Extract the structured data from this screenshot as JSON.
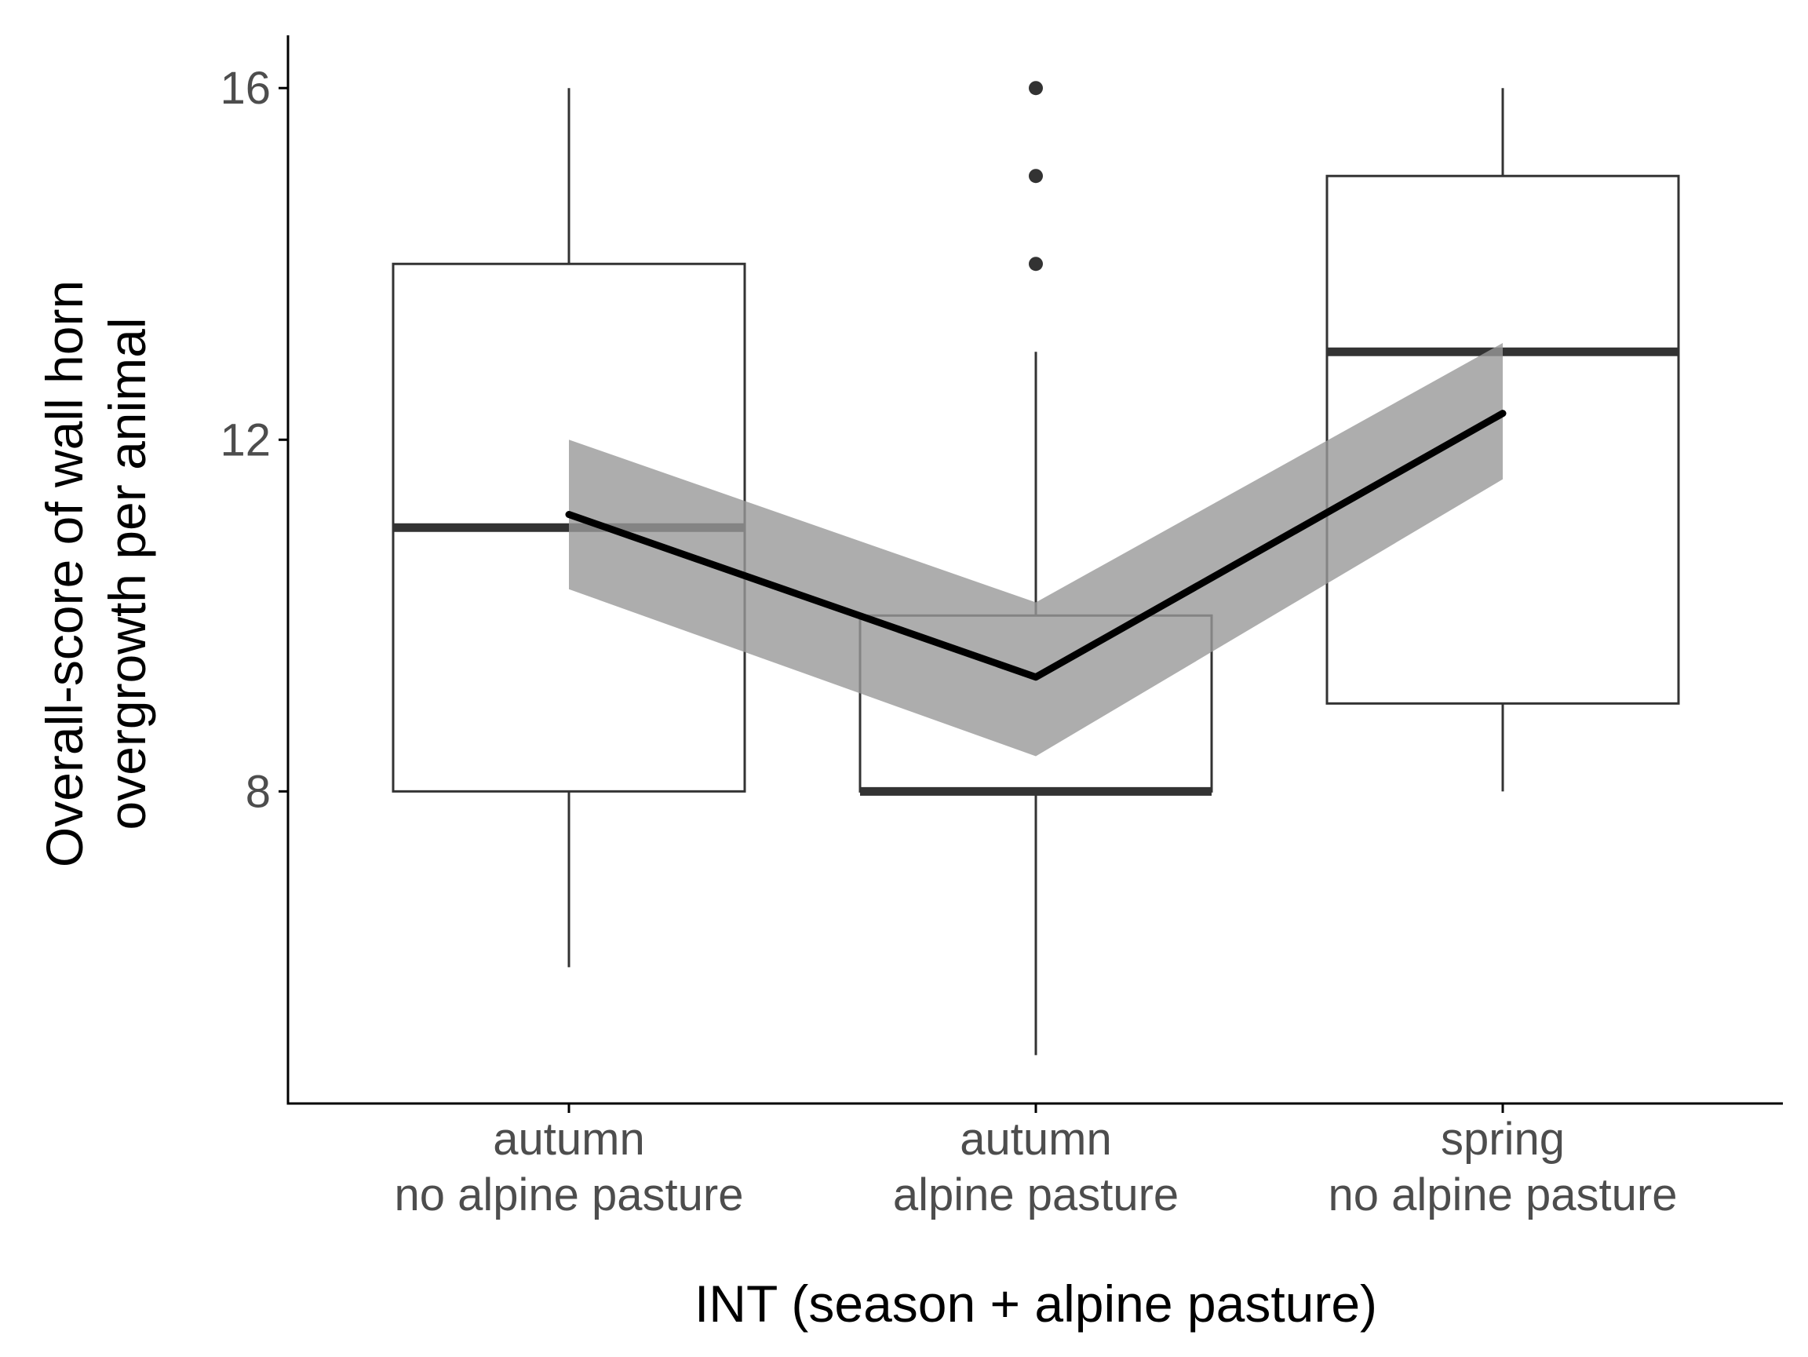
{
  "chart_data": {
    "type": "boxplot",
    "xlabel": "INT (season + alpine pasture)",
    "ylabel_lines": [
      "Overall-score of wall horn",
      "overgrowth per animal"
    ],
    "categories": [
      [
        "autumn",
        "no alpine pasture"
      ],
      [
        "autumn",
        "alpine pasture"
      ],
      [
        "spring",
        "no alpine pasture"
      ]
    ],
    "y_ticks": [
      8,
      12,
      16
    ],
    "ylim": [
      4.45,
      16.6
    ],
    "grid": false,
    "boxes": [
      {
        "whisker_low": 6,
        "q1": 8,
        "median": 11,
        "q3": 14,
        "whisker_high": 16,
        "outliers": []
      },
      {
        "whisker_low": 5,
        "q1": 8,
        "median": 8,
        "q3": 10,
        "whisker_high": 13,
        "outliers": [
          14,
          15,
          16
        ]
      },
      {
        "whisker_low": 8,
        "q1": 9,
        "median": 13,
        "q3": 15,
        "whisker_high": 16,
        "outliers": []
      }
    ],
    "fit_line": {
      "values": [
        11.15,
        9.3,
        12.3
      ],
      "ci_lower": [
        10.3,
        8.4,
        11.55
      ],
      "ci_upper": [
        12.0,
        10.15,
        13.1
      ]
    },
    "colors": {
      "box_stroke": "#333333",
      "median": "#333333",
      "fit_line": "#000000",
      "ci_band": "#999999",
      "axis": "#000000",
      "tick_label": "#4d4d4d"
    }
  }
}
